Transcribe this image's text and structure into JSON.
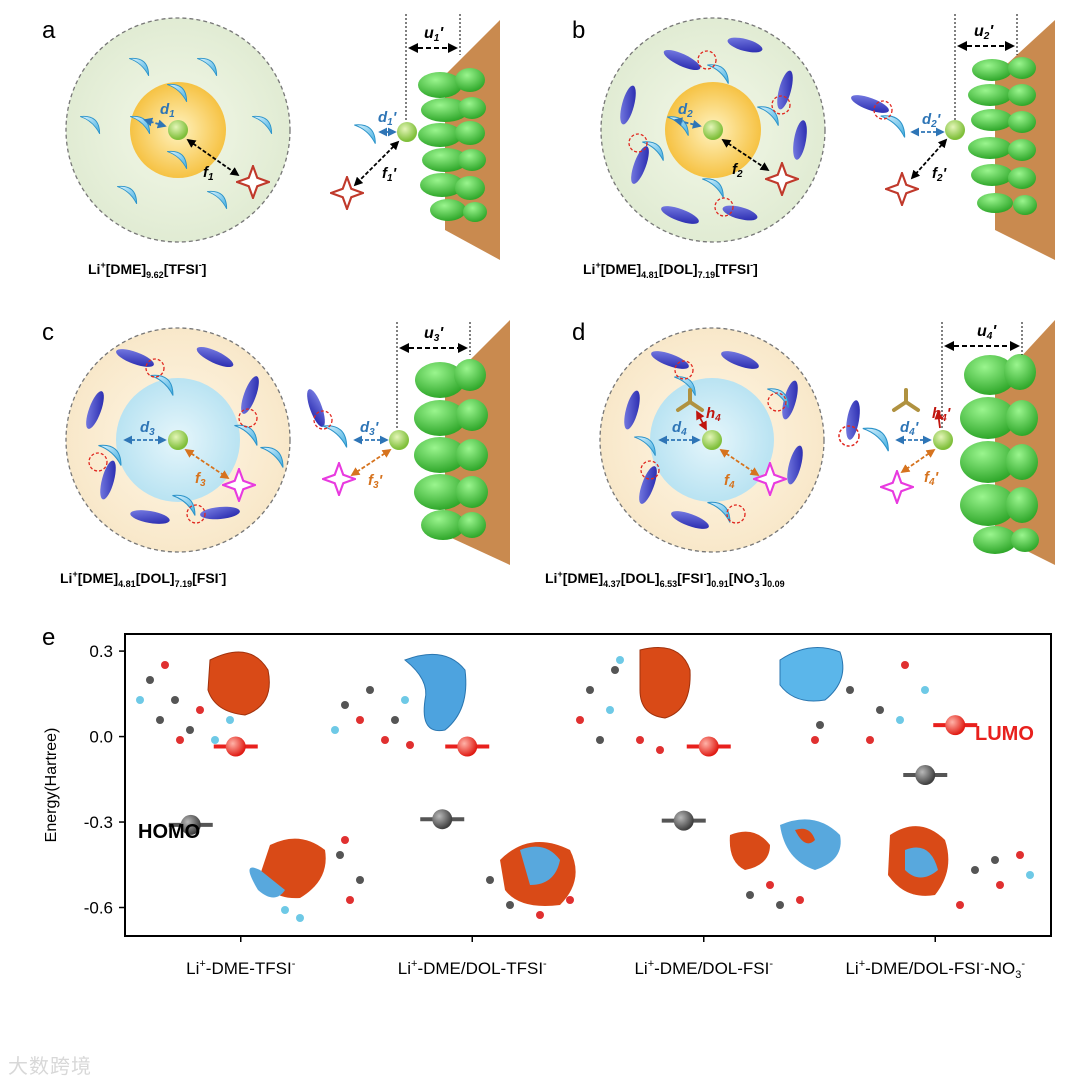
{
  "panels": [
    {
      "letter": "a",
      "formula_base": "Li",
      "formula_sup": "+",
      "formula_rest": "[DME]",
      "sub1": "9.62",
      "part2": "[TFSI",
      "sup2": "-",
      "end": "]",
      "d": "d",
      "d_sub": "1",
      "f": "f",
      "f_sub": "1",
      "u": "u",
      "u_sub": "1",
      "prime": "'"
    },
    {
      "letter": "b",
      "d_sub": "2",
      "f_sub": "2",
      "u_sub": "2"
    },
    {
      "letter": "c",
      "d_sub": "3",
      "f_sub": "3",
      "u_sub": "3"
    },
    {
      "letter": "d",
      "d_sub": "4",
      "f_sub": "4",
      "u_sub": "4",
      "h_sub": "4"
    }
  ],
  "formulas": {
    "a": [
      "Li",
      "+",
      "[DME]",
      "9.62",
      "[TFSI",
      "-",
      "]"
    ],
    "b": [
      "Li",
      "+",
      "[DME]",
      "4.81",
      "[DOL]",
      "7.19",
      "[TFSI",
      "-",
      "]"
    ],
    "c": [
      "Li",
      "+",
      "[DME]",
      "4.81",
      "[DOL]",
      "7.19",
      "[FSI",
      "-",
      "]"
    ],
    "d": [
      "Li",
      "+",
      "[DME]",
      "4.37",
      "[DOL]",
      "6.53",
      "[FSI",
      "-",
      "]",
      "0.91",
      "[NO",
      "3",
      "-",
      "]",
      "0.09"
    ]
  },
  "labels": {
    "a": "a",
    "b": "b",
    "c": "c",
    "d": "d",
    "e": "e",
    "d1": "d",
    "d1s": "1",
    "d2": "d",
    "d2s": "2",
    "d3": "d",
    "d3s": "3",
    "d4": "d",
    "d4s": "4",
    "f1": "f",
    "f1s": "1",
    "f2": "f",
    "f2s": "2",
    "f3": "f",
    "f3s": "3",
    "f4": "f",
    "f4s": "4",
    "u1": "u",
    "u1s": "1",
    "u2": "u",
    "u2s": "2",
    "u3": "u",
    "u3s": "3",
    "u4": "u",
    "u4s": "4",
    "h4": "h",
    "h4s": "4",
    "prime": "'"
  },
  "chart_data": {
    "type": "scatter",
    "ylabel": "Energy(Hartree)",
    "ylim": [
      -0.7,
      0.36
    ],
    "yticks": [
      "0.3",
      "0.0",
      "-0.3",
      "-0.6"
    ],
    "categories": [
      "Li+-DME-TFSI-",
      "Li+-DME/DOL-TFSI-",
      "Li+-DME/DOL-FSI-",
      "Li+-DME/DOL-FSI--NO3-"
    ],
    "category_labels": [
      {
        "base": "Li",
        "sup": "+",
        "rest": "-DME-TFSI",
        "sup2": "-"
      },
      {
        "base": "Li",
        "sup": "+",
        "rest": "-DME/DOL-TFSI",
        "sup2": "-"
      },
      {
        "base": "Li",
        "sup": "+",
        "rest": "-DME/DOL-FSI",
        "sup2": "-"
      },
      {
        "base": "Li",
        "sup": "+",
        "rest": "-DME/DOL-FSI",
        "sup2": "-",
        "rest2": "-NO",
        "sub3": "3",
        "sup3": "-"
      }
    ],
    "series": [
      {
        "name": "LUMO",
        "values": [
          -0.035,
          -0.035,
          -0.035,
          0.04
        ],
        "color": "#e8201d"
      },
      {
        "name": "HOMO",
        "values": [
          -0.31,
          -0.29,
          -0.295,
          -0.135
        ],
        "color": "#555555"
      }
    ],
    "annotations": [
      "LUMO",
      "HOMO"
    ]
  },
  "watermark": "大数跨境"
}
